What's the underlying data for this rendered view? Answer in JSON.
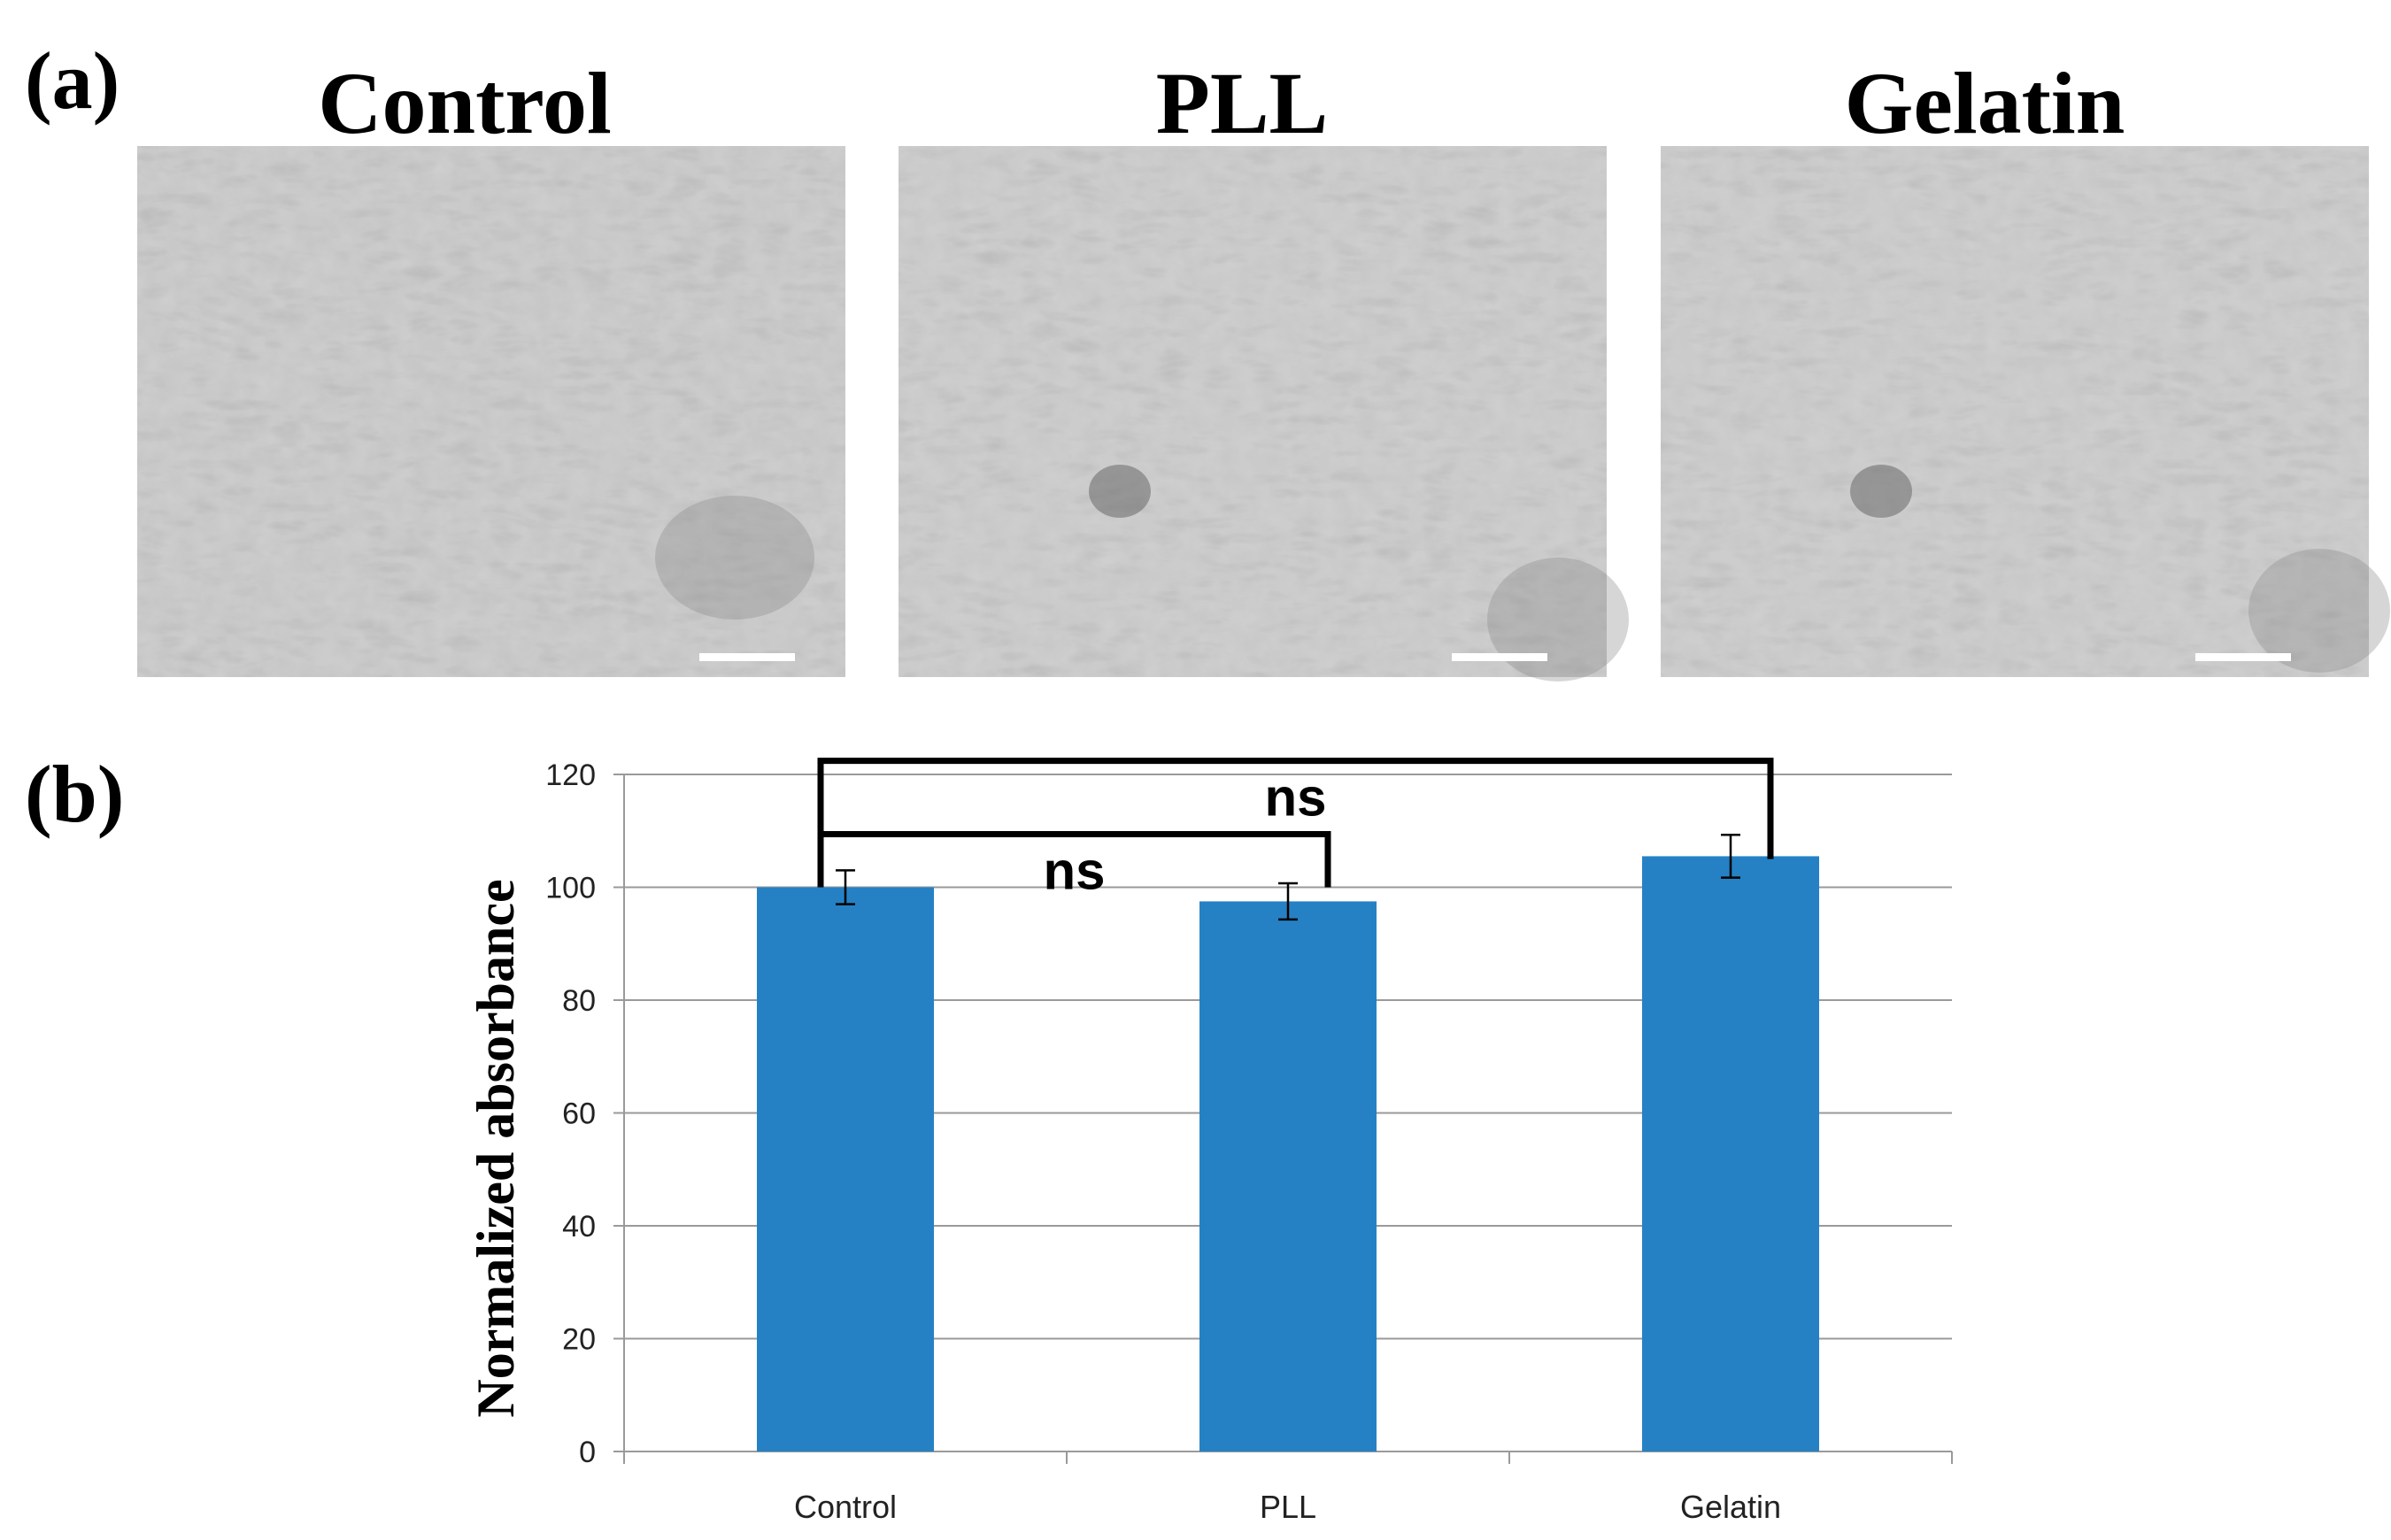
{
  "panel_a": {
    "label": "(a)",
    "images": [
      {
        "title": "Control"
      },
      {
        "title": "PLL"
      },
      {
        "title": "Gelatin"
      }
    ]
  },
  "panel_b": {
    "label": "(b)"
  },
  "chart_data": {
    "type": "bar",
    "categories": [
      "Control",
      "PLL",
      "Gelatin"
    ],
    "values": [
      100,
      97.5,
      105.5
    ],
    "errors": [
      3,
      3.2,
      3.8
    ],
    "title": "",
    "xlabel": "",
    "ylabel": "Normalized absorbance",
    "ylim": [
      0,
      120
    ],
    "yticks": [
      0,
      20,
      40,
      60,
      80,
      100,
      120
    ],
    "grid": true,
    "bar_color": "#2581c4",
    "significance": [
      {
        "from": "Control",
        "to": "PLL",
        "label": "ns",
        "level": 100
      },
      {
        "from": "Control",
        "to": "Gelatin",
        "label": "ns",
        "level": 113
      }
    ]
  }
}
